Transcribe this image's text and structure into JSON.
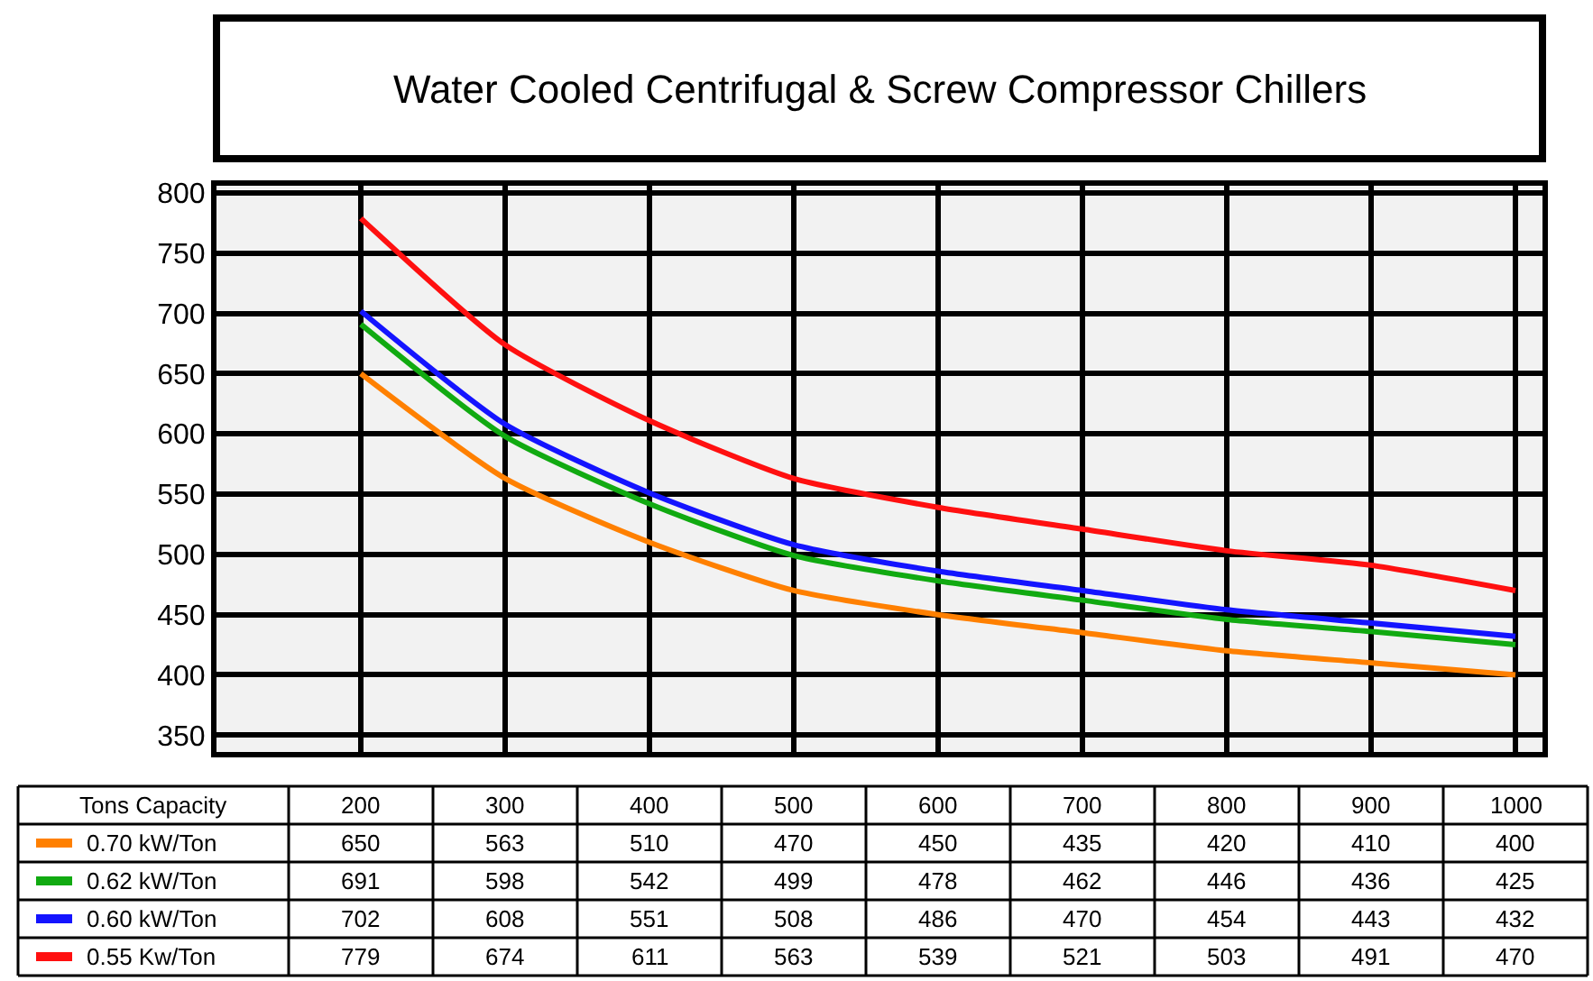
{
  "chart_data": {
    "type": "line",
    "title": "Water Cooled Centrifugal & Screw Compressor Chillers",
    "xlabel": "Tons Capacity",
    "categories": [
      "200",
      "300",
      "400",
      "500",
      "600",
      "700",
      "800",
      "900",
      "1000"
    ],
    "series": [
      {
        "name": "0.70 kW/Ton",
        "color": "#ff8000",
        "values": [
          650,
          563,
          510,
          470,
          450,
          435,
          420,
          410,
          400
        ]
      },
      {
        "name": "0.62 kW/Ton",
        "color": "#11aa11",
        "values": [
          691,
          598,
          542,
          499,
          478,
          462,
          446,
          436,
          425
        ]
      },
      {
        "name": "0.60 kW/Ton",
        "color": "#1414ff",
        "values": [
          702,
          608,
          551,
          508,
          486,
          470,
          454,
          443,
          432
        ]
      },
      {
        "name": "0.55 Kw/Ton",
        "color": "#ff1010",
        "values": [
          779,
          674,
          611,
          563,
          539,
          521,
          503,
          491,
          470
        ]
      }
    ],
    "ylim": [
      336,
      806
    ],
    "yticks": [
      350,
      400,
      450,
      500,
      550,
      600,
      650,
      700,
      750,
      800
    ],
    "grid": true,
    "legend": "bottom left",
    "marker": "none",
    "line_style": "solid",
    "data_labels": true
  }
}
